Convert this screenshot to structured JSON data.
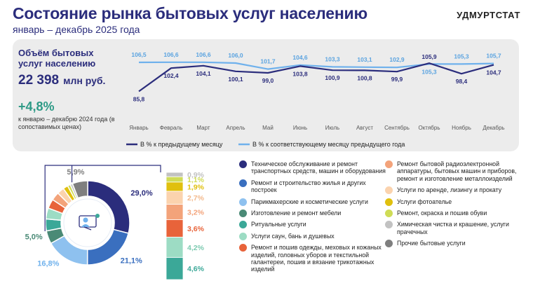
{
  "header": {
    "title": "Состояние рынка бытовых услуг населению",
    "subtitle": "январь – декабрь 2025 года",
    "brand": "УДМУРТСТАТ"
  },
  "summary": {
    "volume_label": "Объём бытовых услуг населению",
    "volume_value": "22 398",
    "volume_unit": "млн руб.",
    "growth_value": "+4,8%",
    "growth_note": "к январю – декабрю 2024 года (в сопоставимых ценах)"
  },
  "colors": {
    "dark_line": "#2b2d7c",
    "light_line": "#6fb1ec"
  },
  "chart_data": [
    {
      "type": "line",
      "categories": [
        "Январь",
        "Февраль",
        "Март",
        "Апрель",
        "Май",
        "Июнь",
        "Июль",
        "Август",
        "Сентябрь",
        "Октябрь",
        "Ноябрь",
        "Декабрь"
      ],
      "series": [
        {
          "name": "В % к предыдущему месяцу",
          "values": [
            85.8,
            102.4,
            104.1,
            100.1,
            99.0,
            103.8,
            100.9,
            100.8,
            99.9,
            105.9,
            98.4,
            104.7
          ],
          "labels": [
            "85,8",
            "102,4",
            "104,1",
            "100,1",
            "99,0",
            "103,8",
            "100,9",
            "100,8",
            "99,9",
            "105,9",
            "98,4",
            "104,7"
          ]
        },
        {
          "name": "В % к соответствующему месяцу предыдущего года",
          "values": [
            106.5,
            106.6,
            106.6,
            106.0,
            101.7,
            104.6,
            103.3,
            103.1,
            102.9,
            105.3,
            105.3,
            105.7
          ],
          "labels": [
            "106,5",
            "106,6",
            "106,6",
            "106,0",
            "101,7",
            "104,6",
            "103,3",
            "103,1",
            "102,9",
            "105,3",
            "105,3",
            "105,7"
          ]
        }
      ],
      "legend": "bottom",
      "grid": false
    },
    {
      "type": "pie",
      "slices": [
        {
          "name": "Техническое обслуживание и ремонт транспортных средств, машин и оборудования",
          "value": 29.0,
          "label": "29,0%",
          "color": "#2b2d7c"
        },
        {
          "name": "Ремонт и строительство жилья и других построек",
          "value": 21.1,
          "label": "21,1%",
          "color": "#3a6fbf"
        },
        {
          "name": "Парикмахерские и косметические услуги",
          "value": 16.8,
          "label": "16,8%",
          "color": "#8ec1ef"
        },
        {
          "name": "Изготовление и ремонт мебели",
          "value": 5.0,
          "label": "5,0%",
          "color": "#4a8a76"
        },
        {
          "name": "Ритуальные услуги",
          "value": 4.6,
          "label": "4,6%",
          "color": "#3ba898"
        },
        {
          "name": "Услуги саун, бань и душевых",
          "value": 4.2,
          "label": "4,2%",
          "color": "#9ddcc4"
        },
        {
          "name": "Ремонт и пошив одежды, меховых и кожаных изделий, головных уборов и текстильной галантереи, пошив и вязание трикотажных изделий",
          "value": 3.6,
          "label": "3,6%",
          "color": "#e8633a"
        },
        {
          "name": "Ремонт бытовой радиоэлектронной аппаратуры, бытовых машин и приборов, ремонт и изготовление металлоизделий",
          "value": 3.2,
          "label": "3,2%",
          "color": "#f3a37a"
        },
        {
          "name": "Услуги по аренде, лизингу и прокату",
          "value": 2.7,
          "label": "2,7%",
          "color": "#fbd3ae"
        },
        {
          "name": "Услуги фотоателье",
          "value": 1.9,
          "label": "1,9%",
          "color": "#e0c00e"
        },
        {
          "name": "Ремонт, окраска и пошив обуви",
          "value": 1.1,
          "label": "1,1%",
          "color": "#cfdc56"
        },
        {
          "name": "Химическая чистка и крашение, услуги прачечных",
          "value": 0.9,
          "label": "0,9%",
          "color": "#c2c2c2"
        },
        {
          "name": "Прочие бытовые услуги",
          "value": 5.9,
          "label": "5,9%",
          "color": "#7f7f7f"
        }
      ],
      "small_group_label": "5,9%"
    }
  ]
}
